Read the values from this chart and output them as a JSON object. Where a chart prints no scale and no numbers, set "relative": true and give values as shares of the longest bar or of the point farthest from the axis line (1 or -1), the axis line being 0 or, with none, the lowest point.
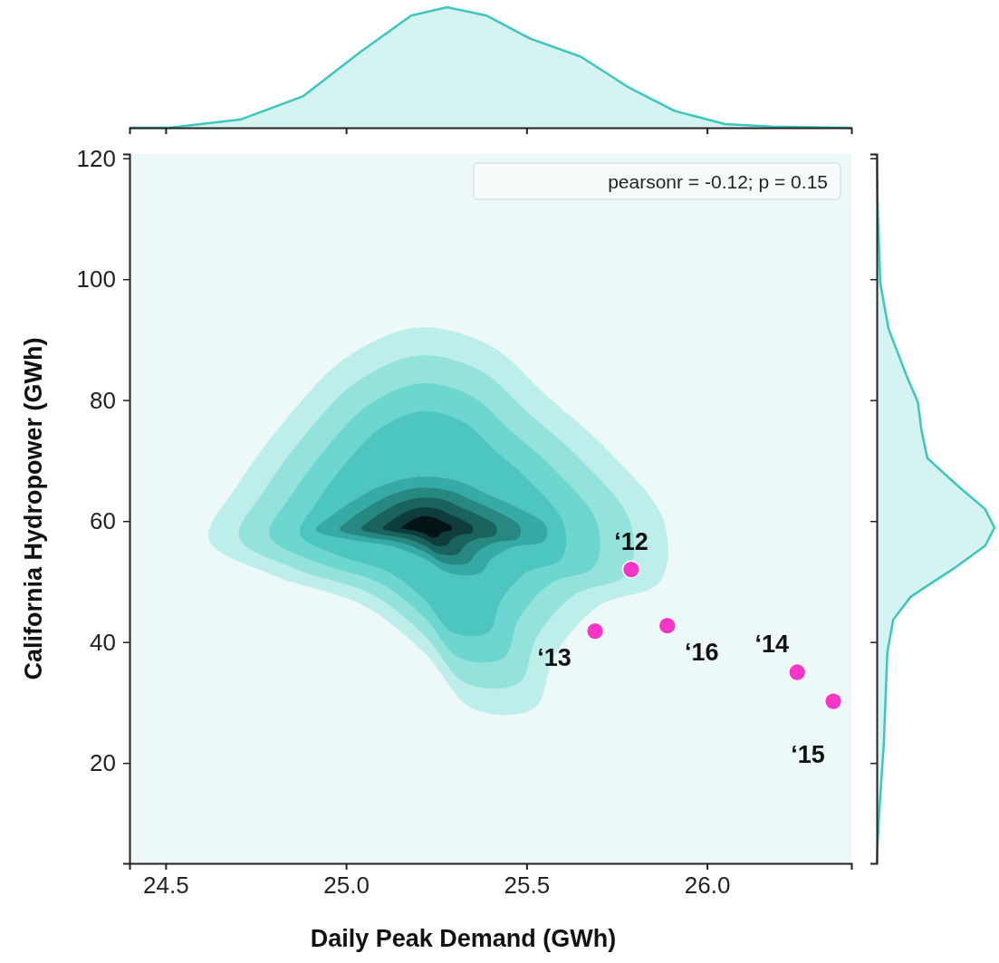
{
  "chart_data": [
    {
      "type": "area",
      "relative": true,
      "x": [
        24.4,
        24.51,
        24.71,
        24.88,
        25.04,
        25.18,
        25.28,
        25.39,
        25.51,
        25.65,
        25.78,
        25.91,
        26.05,
        26.18,
        26.38,
        26.4
      ],
      "values": [
        0,
        0,
        0.07,
        0.26,
        0.63,
        0.93,
        1.0,
        0.93,
        0.74,
        0.59,
        0.34,
        0.14,
        0.03,
        0.01,
        0,
        0
      ],
      "color": "#3cc7bd",
      "xlim": [
        24.4,
        26.4
      ]
    },
    {
      "type": "scatter",
      "x": [
        25.79,
        25.69,
        26.25,
        26.35,
        25.89
      ],
      "values": [
        52.0,
        41.8,
        35.0,
        30.2,
        42.7
      ],
      "color": "#f536c8",
      "marker": "circle",
      "xlabel": "Daily Peak Demand (GWh)",
      "ylabel": "California Hydropower (GWh)",
      "xlim": [
        24.4,
        26.4
      ],
      "ylim": [
        3.4,
        120.7
      ],
      "xticks": [
        24.5,
        {
          "value": 25.0,
          "label": "25.0"
        },
        25.5,
        {
          "value": 26.0,
          "label": "26.0"
        }
      ],
      "yticks": [
        20,
        40,
        60,
        80,
        100,
        120
      ],
      "annotations": [
        "pearsonr = -0.12; p = 0.15",
        {
          "text": "‘12",
          "x": 25.79,
          "y": 52.0
        },
        {
          "text": "‘13",
          "x": 25.69,
          "y": 41.8
        },
        {
          "text": "‘14",
          "x": 26.25,
          "y": 35.0
        },
        {
          "text": "‘15",
          "x": 26.35,
          "y": 30.2
        },
        {
          "text": "‘16",
          "x": 25.89,
          "y": 42.7
        }
      ]
    },
    {
      "type": "area",
      "relative": true,
      "orientation": "horizontal",
      "x": [
        3.4,
        11.6,
        23.1,
        38.3,
        43.7,
        47.5,
        52.1,
        55.9,
        58.9,
        62.0,
        65.8,
        70.4,
        75.0,
        79.6,
        84.2,
        91.8,
        99.4,
        110.8,
        120.7
      ],
      "values": [
        0,
        0.02,
        0.06,
        0.09,
        0.14,
        0.29,
        0.65,
        0.92,
        1.0,
        0.92,
        0.69,
        0.43,
        0.38,
        0.35,
        0.25,
        0.1,
        0.03,
        0.01,
        0
      ],
      "color": "#3cc7bd",
      "ylim": [
        3.4,
        120.7
      ]
    }
  ]
}
